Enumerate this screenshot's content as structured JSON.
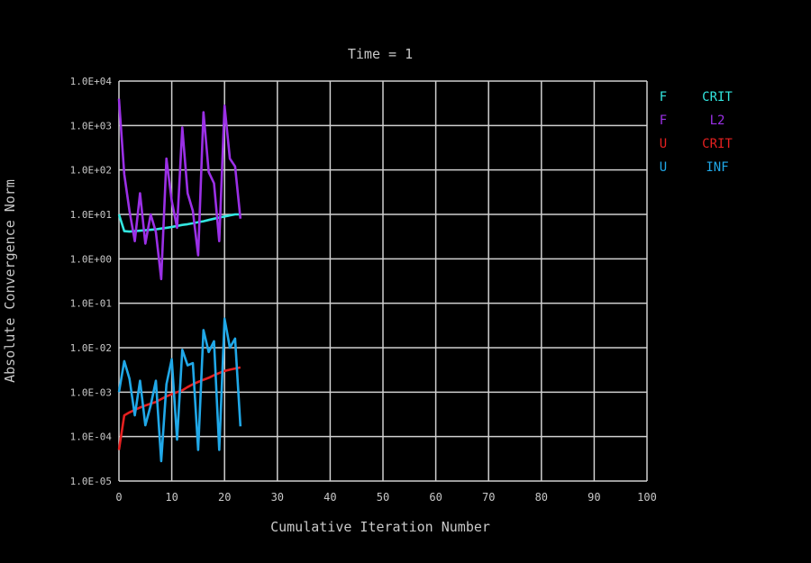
{
  "chart_data": {
    "type": "line",
    "title": "Time = 1",
    "xlabel": "Cumulative Iteration Number",
    "ylabel": "Absolute Convergence Norm",
    "xlim": [
      0,
      100
    ],
    "ylim_log10": [
      -5,
      4
    ],
    "yscale": "log",
    "grid": true,
    "legend_position": "right",
    "background": "#000000",
    "axis_color": "#ffffff",
    "text_color": "#c8c8c8",
    "x_ticks": [
      "0",
      "10",
      "20",
      "30",
      "40",
      "50",
      "60",
      "70",
      "80",
      "90",
      "100"
    ],
    "y_ticks": [
      "1.0E-05",
      "1.0E-04",
      "1.0E-03",
      "1.0E-02",
      "1.0E-01",
      "1.0E+00",
      "1.0E+01",
      "1.0E+02",
      "1.0E+03",
      "1.0E+04"
    ],
    "legend": [
      {
        "left": "F",
        "right": "CRIT",
        "color": "#33e6e0"
      },
      {
        "left": "F",
        "right": "L2",
        "color": "#9b30e6"
      },
      {
        "left": "U",
        "right": "CRIT",
        "color": "#e62020"
      },
      {
        "left": "U",
        "right": "INF",
        "color": "#20a8e8"
      }
    ],
    "series": [
      {
        "key": "f-crit",
        "color": "#33e6e0",
        "x": [
          0,
          1,
          2,
          3,
          4,
          5,
          6,
          7,
          8,
          9,
          10,
          11,
          12,
          13,
          14,
          15,
          16,
          17,
          18,
          19,
          20,
          21,
          22,
          23
        ],
        "y": [
          10,
          4.2,
          4.1,
          4.2,
          4.3,
          4.4,
          4.5,
          4.6,
          4.8,
          5,
          5.2,
          5.5,
          5.8,
          6,
          6.3,
          6.7,
          7,
          7.5,
          8,
          8.5,
          9,
          9.5,
          10,
          10
        ]
      },
      {
        "key": "f-l2",
        "color": "#9b30e6",
        "x": [
          0,
          1,
          2,
          3,
          4,
          5,
          6,
          7,
          8,
          9,
          10,
          11,
          12,
          13,
          14,
          15,
          16,
          17,
          18,
          19,
          20,
          21,
          22,
          23
        ],
        "y": [
          4000,
          80,
          12,
          2.5,
          30,
          2.2,
          10,
          4,
          0.35,
          180,
          20,
          5,
          900,
          30,
          12,
          1.2,
          2000,
          90,
          50,
          2.5,
          2800,
          180,
          120,
          8
        ]
      },
      {
        "key": "u-crit",
        "color": "#e62020",
        "x": [
          0,
          1,
          2,
          3,
          4,
          5,
          6,
          7,
          8,
          9,
          10,
          11,
          12,
          13,
          14,
          15,
          16,
          17,
          18,
          19,
          20,
          21,
          22,
          23
        ],
        "y": [
          5e-05,
          0.0003,
          0.00035,
          0.0004,
          0.00045,
          0.0005,
          0.00055,
          0.0006,
          0.0007,
          0.0008,
          0.0009,
          0.001,
          0.0011,
          0.0013,
          0.0015,
          0.0017,
          0.0019,
          0.0021,
          0.0024,
          0.0027,
          0.003,
          0.0032,
          0.0034,
          0.0036
        ]
      },
      {
        "key": "u-inf",
        "color": "#20a8e8",
        "x": [
          0,
          1,
          2,
          3,
          4,
          5,
          6,
          7,
          8,
          9,
          10,
          11,
          12,
          13,
          14,
          15,
          16,
          17,
          18,
          19,
          20,
          21,
          22,
          23
        ],
        "y": [
          0.001,
          0.005,
          0.002,
          0.0003,
          0.0018,
          0.00018,
          0.0005,
          0.0018,
          2.8e-05,
          0.0015,
          0.0055,
          8.5e-05,
          0.009,
          0.004,
          0.0045,
          5e-05,
          0.025,
          0.008,
          0.014,
          5e-05,
          0.045,
          0.01,
          0.016,
          0.00017
        ]
      }
    ]
  }
}
